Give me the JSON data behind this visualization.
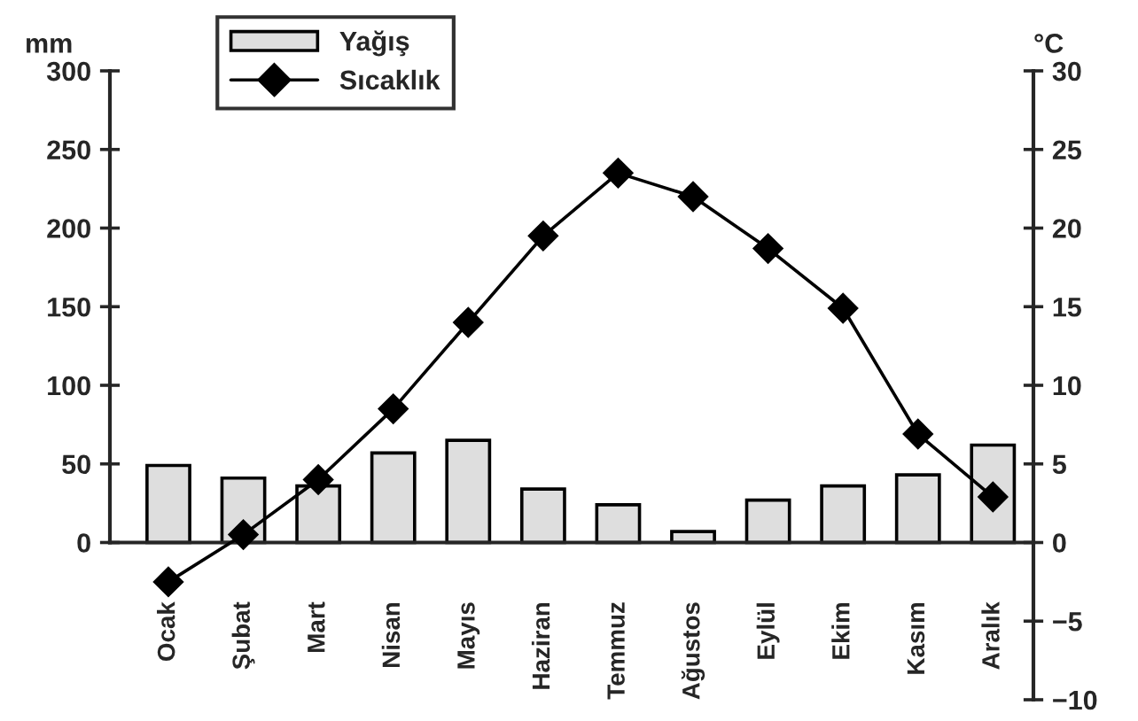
{
  "chart_data": {
    "type": "bar",
    "ylabel": "mm",
    "y2label": "°C",
    "categories": [
      "Ocak",
      "Şubat",
      "Mart",
      "Nisan",
      "Mayıs",
      "Haziran",
      "Temmuz",
      "Ağustos",
      "Eylül",
      "Ekim",
      "Kasım",
      "Aralık"
    ],
    "series": [
      {
        "name": "Yağış",
        "color": "#dedede",
        "values": [
          49,
          41,
          36,
          57,
          65,
          34,
          24,
          7,
          27,
          36,
          43,
          62
        ]
      },
      {
        "name": "Sıcaklık",
        "type": "line",
        "axis": "y2",
        "color": "#000000",
        "marker": "diamond",
        "values": [
          -2.5,
          0.5,
          4,
          8.5,
          14,
          19.5,
          23.5,
          22,
          18.7,
          14.9,
          6.9,
          2.9
        ]
      }
    ],
    "ylim": [
      -100,
      300
    ],
    "yticks": [
      0,
      50,
      100,
      150,
      200,
      250,
      300
    ],
    "y2lim": [
      -10,
      30
    ],
    "y2ticks": [
      -10,
      -5,
      0,
      5,
      10,
      15,
      20,
      25,
      30
    ],
    "grid": false,
    "legend": "top left"
  }
}
